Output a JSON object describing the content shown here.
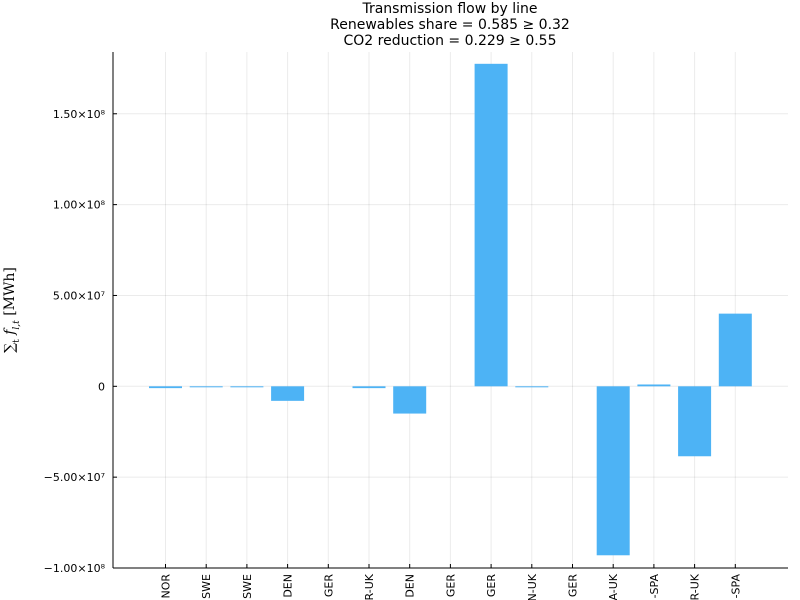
{
  "chart_data": {
    "type": "bar",
    "title": [
      "Transmission flow by line",
      "Renewables share = 0.585 ≥ 0.32",
      "CO2 reduction = 0.229 ≥ 0.55"
    ],
    "ylabel": "∑_t f_{l,t} [MWh]",
    "xlabel": "",
    "color": "#4DB3F5",
    "categories": [
      "NOR",
      "SWE",
      "SWE",
      "DEN",
      "GER",
      "R-UK",
      "DEN",
      "GER",
      "GER",
      "N-UK",
      "GER",
      "A-UK",
      "-SPA",
      "R-UK",
      "-SPA"
    ],
    "values": [
      -1000000,
      -300000,
      -300000,
      -8000000,
      0,
      -1000000,
      -15000000,
      0,
      177500000,
      -500000,
      0,
      -93000000,
      1000000,
      -38500000,
      40000000
    ],
    "y_ticks": [
      {
        "value": 150000000,
        "label": "1.50×10⁸"
      },
      {
        "value": 100000000,
        "label": "1.00×10⁸"
      },
      {
        "value": 50000000,
        "label": "5.00×10⁷"
      },
      {
        "value": 0,
        "label": "0"
      },
      {
        "value": -50000000,
        "label": "−5.00×10⁷"
      },
      {
        "value": -100000000,
        "label": "−1.00×10⁸"
      }
    ],
    "ylim": [
      -100000000,
      184000000
    ],
    "grid": true,
    "legend": "none"
  }
}
